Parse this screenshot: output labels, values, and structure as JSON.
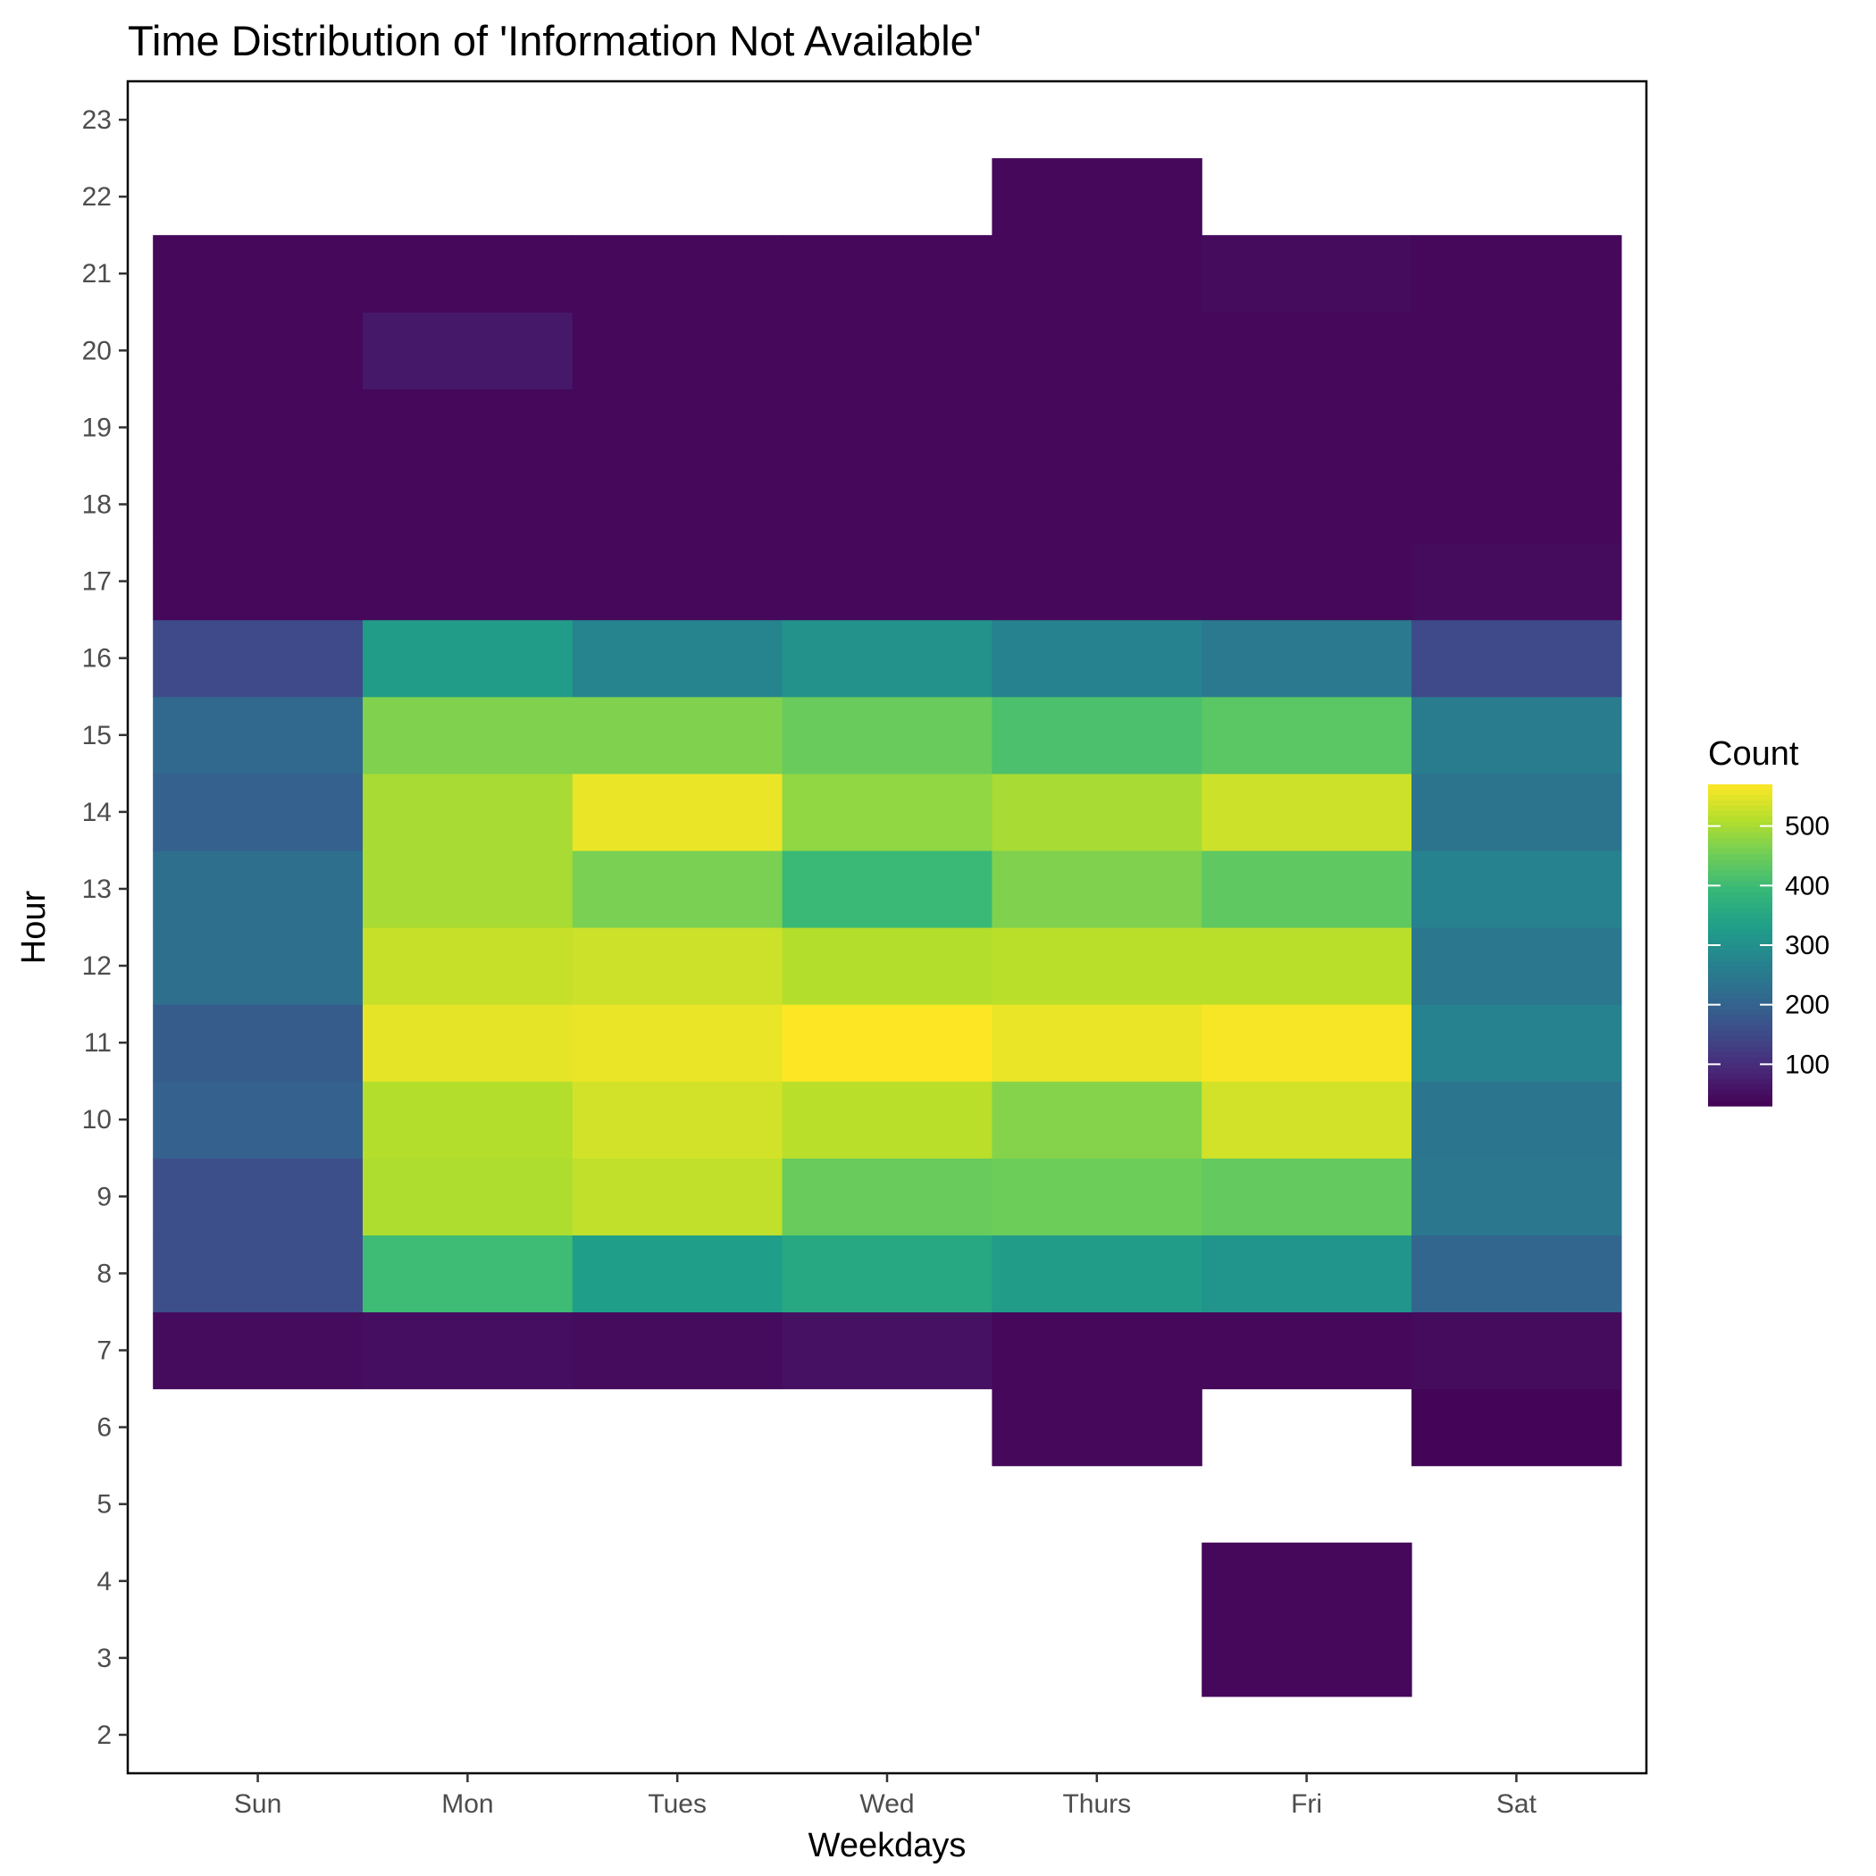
{
  "chart_data": {
    "type": "heatmap",
    "title": "Time Distribution of 'Information Not Available'",
    "xlabel": "Weekdays",
    "ylabel": "Hour",
    "x_categories": [
      "Sun",
      "Mon",
      "Tues",
      "Wed",
      "Thurs",
      "Fri",
      "Sat"
    ],
    "y_ticks": [
      2,
      3,
      4,
      5,
      6,
      7,
      8,
      9,
      10,
      11,
      12,
      13,
      14,
      15,
      16,
      17,
      18,
      19,
      20,
      21,
      22,
      23
    ],
    "ylim": [
      1.5,
      23.5
    ],
    "legend": {
      "title": "Count",
      "position": "right",
      "ticks": [
        100,
        200,
        300,
        400,
        500
      ],
      "range": [
        30,
        570
      ],
      "colormap": "viridis"
    },
    "grid": false,
    "cells": [
      {
        "day": "Sun",
        "hour": 7,
        "count": 45
      },
      {
        "day": "Sun",
        "hour": 8,
        "count": 160
      },
      {
        "day": "Sun",
        "hour": 9,
        "count": 160
      },
      {
        "day": "Sun",
        "hour": 10,
        "count": 195
      },
      {
        "day": "Sun",
        "hour": 11,
        "count": 185
      },
      {
        "day": "Sun",
        "hour": 12,
        "count": 225
      },
      {
        "day": "Sun",
        "hour": 13,
        "count": 225
      },
      {
        "day": "Sun",
        "hour": 14,
        "count": 195
      },
      {
        "day": "Sun",
        "hour": 15,
        "count": 210
      },
      {
        "day": "Sun",
        "hour": 16,
        "count": 150
      },
      {
        "day": "Sun",
        "hour": 17,
        "count": 40
      },
      {
        "day": "Sun",
        "hour": 18,
        "count": 40
      },
      {
        "day": "Sun",
        "hour": 19,
        "count": 40
      },
      {
        "day": "Sun",
        "hour": 20,
        "count": 40
      },
      {
        "day": "Sun",
        "hour": 21,
        "count": 40
      },
      {
        "day": "Mon",
        "hour": 7,
        "count": 50
      },
      {
        "day": "Mon",
        "hour": 8,
        "count": 400
      },
      {
        "day": "Mon",
        "hour": 9,
        "count": 505
      },
      {
        "day": "Mon",
        "hour": 10,
        "count": 510
      },
      {
        "day": "Mon",
        "hour": 11,
        "count": 550
      },
      {
        "day": "Mon",
        "hour": 12,
        "count": 525
      },
      {
        "day": "Mon",
        "hour": 13,
        "count": 500
      },
      {
        "day": "Mon",
        "hour": 14,
        "count": 500
      },
      {
        "day": "Mon",
        "hour": 15,
        "count": 465
      },
      {
        "day": "Mon",
        "hour": 16,
        "count": 325
      },
      {
        "day": "Mon",
        "hour": 17,
        "count": 40
      },
      {
        "day": "Mon",
        "hour": 18,
        "count": 40
      },
      {
        "day": "Mon",
        "hour": 19,
        "count": 40
      },
      {
        "day": "Mon",
        "hour": 20,
        "count": 65
      },
      {
        "day": "Mon",
        "hour": 21,
        "count": 40
      },
      {
        "day": "Tues",
        "hour": 7,
        "count": 45
      },
      {
        "day": "Tues",
        "hour": 8,
        "count": 330
      },
      {
        "day": "Tues",
        "hour": 9,
        "count": 520
      },
      {
        "day": "Tues",
        "hour": 10,
        "count": 535
      },
      {
        "day": "Tues",
        "hour": 11,
        "count": 555
      },
      {
        "day": "Tues",
        "hour": 12,
        "count": 530
      },
      {
        "day": "Tues",
        "hour": 13,
        "count": 460
      },
      {
        "day": "Tues",
        "hour": 14,
        "count": 555
      },
      {
        "day": "Tues",
        "hour": 15,
        "count": 465
      },
      {
        "day": "Tues",
        "hour": 16,
        "count": 275
      },
      {
        "day": "Tues",
        "hour": 17,
        "count": 40
      },
      {
        "day": "Tues",
        "hour": 18,
        "count": 40
      },
      {
        "day": "Tues",
        "hour": 19,
        "count": 40
      },
      {
        "day": "Tues",
        "hour": 20,
        "count": 40
      },
      {
        "day": "Tues",
        "hour": 21,
        "count": 40
      },
      {
        "day": "Wed",
        "hour": 7,
        "count": 55
      },
      {
        "day": "Wed",
        "hour": 8,
        "count": 355
      },
      {
        "day": "Wed",
        "hour": 9,
        "count": 445
      },
      {
        "day": "Wed",
        "hour": 10,
        "count": 515
      },
      {
        "day": "Wed",
        "hour": 11,
        "count": 570
      },
      {
        "day": "Wed",
        "hour": 12,
        "count": 510
      },
      {
        "day": "Wed",
        "hour": 13,
        "count": 395
      },
      {
        "day": "Wed",
        "hour": 14,
        "count": 480
      },
      {
        "day": "Wed",
        "hour": 15,
        "count": 445
      },
      {
        "day": "Wed",
        "hour": 16,
        "count": 305
      },
      {
        "day": "Wed",
        "hour": 17,
        "count": 40
      },
      {
        "day": "Wed",
        "hour": 18,
        "count": 40
      },
      {
        "day": "Wed",
        "hour": 19,
        "count": 40
      },
      {
        "day": "Wed",
        "hour": 20,
        "count": 40
      },
      {
        "day": "Wed",
        "hour": 21,
        "count": 40
      },
      {
        "day": "Thurs",
        "hour": 6,
        "count": 40
      },
      {
        "day": "Thurs",
        "hour": 7,
        "count": 40
      },
      {
        "day": "Thurs",
        "hour": 8,
        "count": 325
      },
      {
        "day": "Thurs",
        "hour": 9,
        "count": 450
      },
      {
        "day": "Thurs",
        "hour": 10,
        "count": 470
      },
      {
        "day": "Thurs",
        "hour": 11,
        "count": 555
      },
      {
        "day": "Thurs",
        "hour": 12,
        "count": 515
      },
      {
        "day": "Thurs",
        "hour": 13,
        "count": 465
      },
      {
        "day": "Thurs",
        "hour": 14,
        "count": 500
      },
      {
        "day": "Thurs",
        "hour": 15,
        "count": 415
      },
      {
        "day": "Thurs",
        "hour": 16,
        "count": 270
      },
      {
        "day": "Thurs",
        "hour": 17,
        "count": 40
      },
      {
        "day": "Thurs",
        "hour": 18,
        "count": 40
      },
      {
        "day": "Thurs",
        "hour": 19,
        "count": 40
      },
      {
        "day": "Thurs",
        "hour": 20,
        "count": 40
      },
      {
        "day": "Thurs",
        "hour": 21,
        "count": 40
      },
      {
        "day": "Thurs",
        "hour": 22,
        "count": 40
      },
      {
        "day": "Fri",
        "hour": 3,
        "count": 40
      },
      {
        "day": "Fri",
        "hour": 4,
        "count": 40
      },
      {
        "day": "Fri",
        "hour": 7,
        "count": 40
      },
      {
        "day": "Fri",
        "hour": 8,
        "count": 310
      },
      {
        "day": "Fri",
        "hour": 9,
        "count": 440
      },
      {
        "day": "Fri",
        "hour": 10,
        "count": 535
      },
      {
        "day": "Fri",
        "hour": 11,
        "count": 565
      },
      {
        "day": "Fri",
        "hour": 12,
        "count": 515
      },
      {
        "day": "Fri",
        "hour": 13,
        "count": 435
      },
      {
        "day": "Fri",
        "hour": 14,
        "count": 530
      },
      {
        "day": "Fri",
        "hour": 15,
        "count": 430
      },
      {
        "day": "Fri",
        "hour": 16,
        "count": 250
      },
      {
        "day": "Fri",
        "hour": 17,
        "count": 40
      },
      {
        "day": "Fri",
        "hour": 18,
        "count": 40
      },
      {
        "day": "Fri",
        "hour": 19,
        "count": 40
      },
      {
        "day": "Fri",
        "hour": 20,
        "count": 40
      },
      {
        "day": "Fri",
        "hour": 21,
        "count": 45
      },
      {
        "day": "Sat",
        "hour": 6,
        "count": 35
      },
      {
        "day": "Sat",
        "hour": 7,
        "count": 45
      },
      {
        "day": "Sat",
        "hour": 8,
        "count": 205
      },
      {
        "day": "Sat",
        "hour": 9,
        "count": 245
      },
      {
        "day": "Sat",
        "hour": 10,
        "count": 240
      },
      {
        "day": "Sat",
        "hour": 11,
        "count": 270
      },
      {
        "day": "Sat",
        "hour": 12,
        "count": 245
      },
      {
        "day": "Sat",
        "hour": 13,
        "count": 270
      },
      {
        "day": "Sat",
        "hour": 14,
        "count": 235
      },
      {
        "day": "Sat",
        "hour": 15,
        "count": 255
      },
      {
        "day": "Sat",
        "hour": 16,
        "count": 150
      },
      {
        "day": "Sat",
        "hour": 17,
        "count": 45
      },
      {
        "day": "Sat",
        "hour": 18,
        "count": 40
      },
      {
        "day": "Sat",
        "hour": 19,
        "count": 40
      },
      {
        "day": "Sat",
        "hour": 20,
        "count": 40
      },
      {
        "day": "Sat",
        "hour": 21,
        "count": 40
      }
    ]
  }
}
